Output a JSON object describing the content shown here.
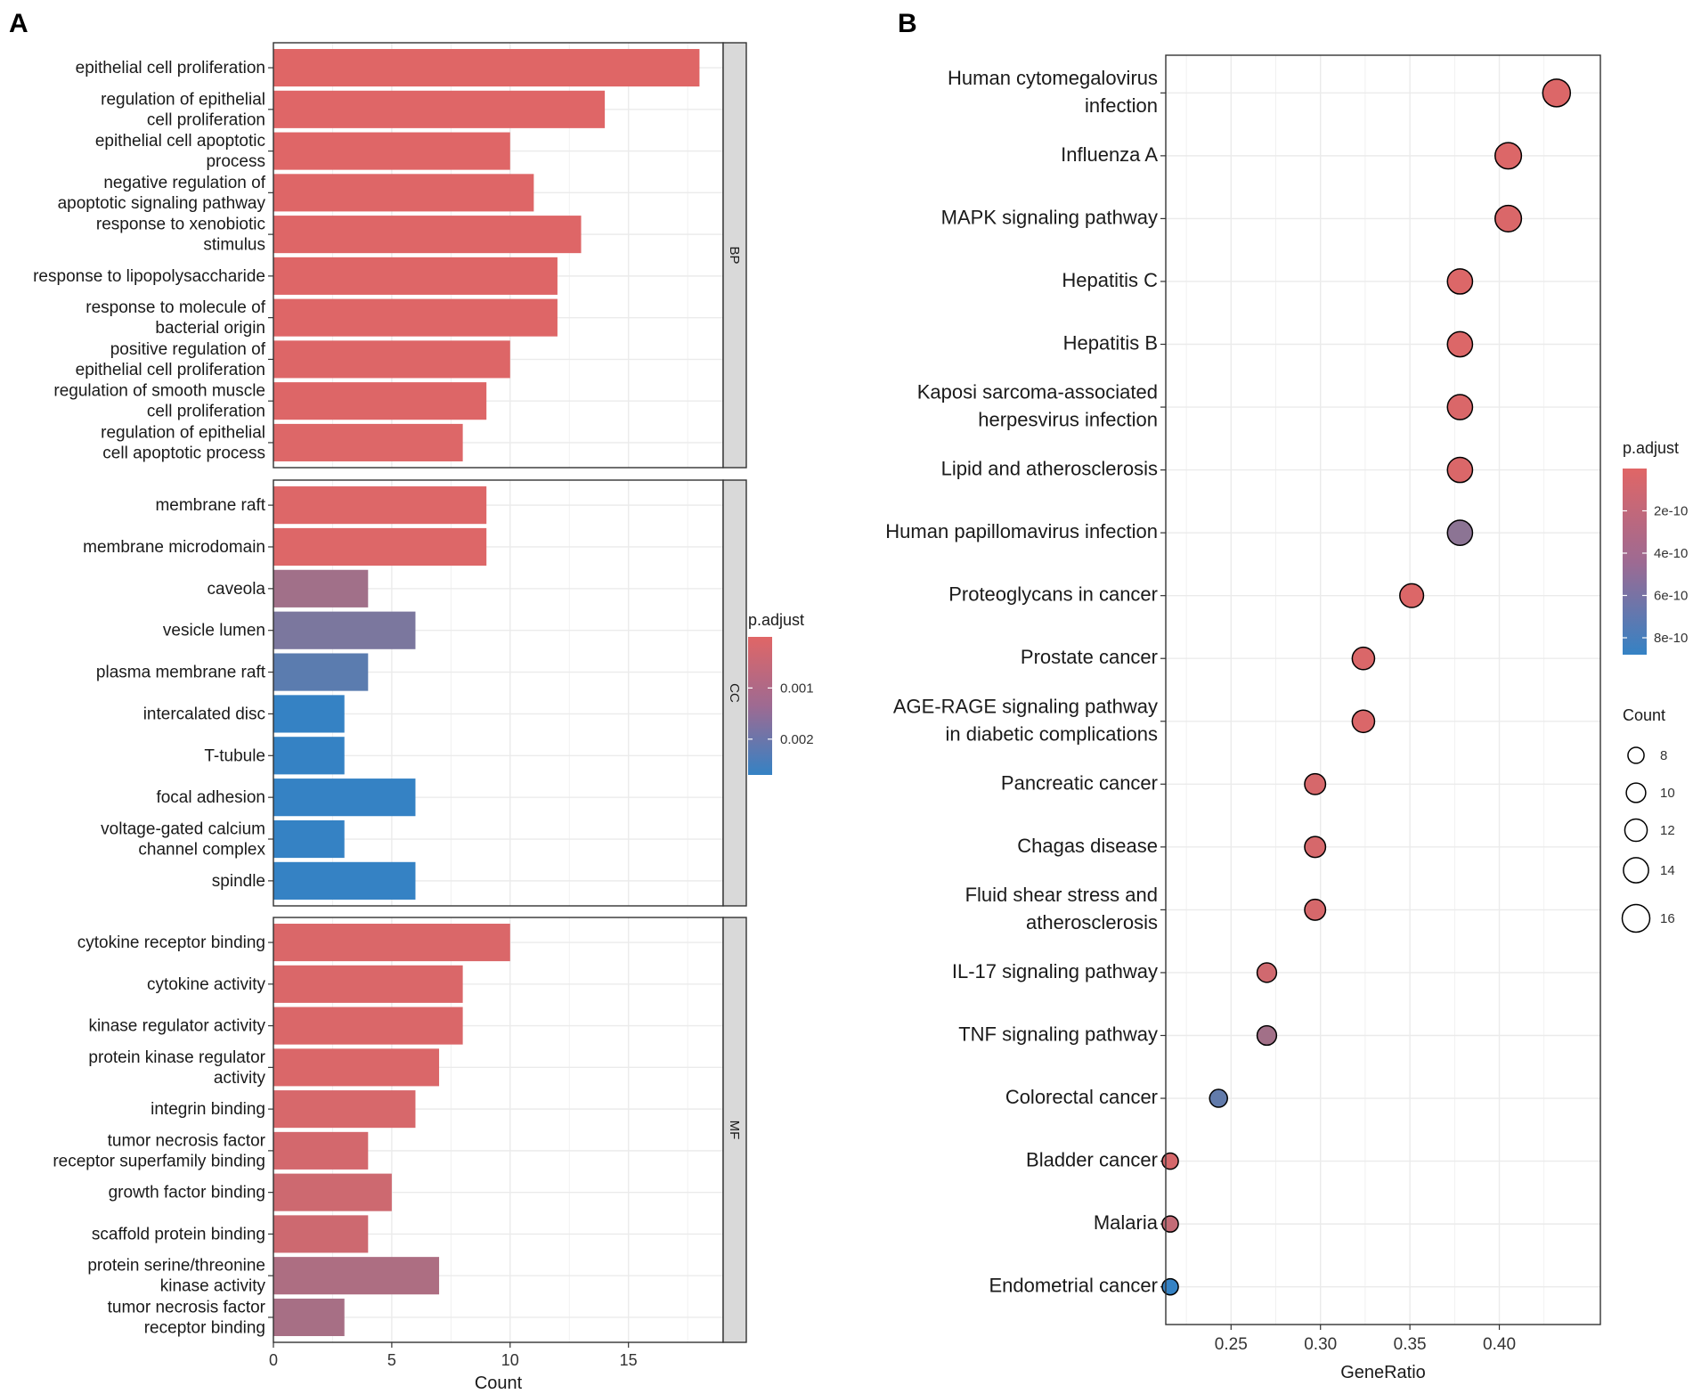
{
  "chart_data": [
    {
      "panel": "A",
      "type": "bar",
      "orientation": "horizontal",
      "xlabel": "Count",
      "xlim": [
        0,
        19
      ],
      "xticks": [
        0,
        5,
        10,
        15
      ],
      "facets": [
        {
          "label": "BP",
          "categories": [
            [
              "epithelial cell proliferation"
            ],
            [
              "regulation of epithelial",
              "cell proliferation"
            ],
            [
              "epithelial cell apoptotic",
              "process"
            ],
            [
              "negative regulation of",
              "apoptotic signaling pathway"
            ],
            [
              "response to xenobiotic",
              "stimulus"
            ],
            [
              "response to lipopolysaccharide"
            ],
            [
              "response to molecule of",
              "bacterial origin"
            ],
            [
              "positive regulation of",
              "epithelial cell proliferation"
            ],
            [
              "regulation of smooth muscle",
              "cell proliferation"
            ],
            [
              "regulation of epithelial",
              "cell apoptotic process"
            ]
          ],
          "values": [
            18,
            14,
            10,
            11,
            13,
            12,
            12,
            10,
            9,
            8
          ],
          "padjust": [
            1e-05,
            2e-05,
            2e-05,
            3e-05,
            3e-05,
            3e-05,
            3e-05,
            4e-05,
            4e-05,
            5e-05
          ]
        },
        {
          "label": "CC",
          "categories": [
            [
              "membrane raft"
            ],
            [
              "membrane microdomain"
            ],
            [
              "caveola"
            ],
            [
              "vesicle lumen"
            ],
            [
              "plasma membrane raft"
            ],
            [
              "intercalated disc"
            ],
            [
              "T-tubule"
            ],
            [
              "focal adhesion"
            ],
            [
              "voltage-gated calcium",
              "channel complex"
            ],
            [
              "spindle"
            ]
          ],
          "values": [
            9,
            9,
            4,
            6,
            4,
            3,
            3,
            6,
            3,
            6
          ],
          "padjust": [
            5e-05,
            5e-05,
            0.001,
            0.0016,
            0.0021,
            0.0027,
            0.0027,
            0.0027,
            0.0027,
            0.0027
          ]
        },
        {
          "label": "MF",
          "categories": [
            [
              "cytokine receptor binding"
            ],
            [
              "cytokine activity"
            ],
            [
              "kinase regulator activity"
            ],
            [
              "protein kinase regulator",
              "activity"
            ],
            [
              "integrin binding"
            ],
            [
              "tumor necrosis factor",
              "receptor superfamily binding"
            ],
            [
              "growth factor binding"
            ],
            [
              "scaffold protein binding"
            ],
            [
              "protein serine/threonine",
              "kinase activity"
            ],
            [
              "tumor necrosis factor",
              "receptor binding"
            ]
          ],
          "values": [
            10,
            8,
            8,
            7,
            6,
            4,
            5,
            4,
            7,
            3
          ],
          "padjust": [
            0.0001,
            0.0001,
            0.0001,
            0.0001,
            0.00015,
            0.0002,
            0.0003,
            0.0003,
            0.0008,
            0.0009
          ]
        }
      ],
      "legend": {
        "title": "p.adjust",
        "ticks": [
          0.001,
          0.002
        ],
        "tick_labels": [
          "0.001",
          "0.002"
        ],
        "range": [
          0.0,
          0.0027
        ],
        "high_color": "#E06666",
        "low_color": "#3582C4",
        "placement": "right"
      }
    },
    {
      "panel": "B",
      "type": "scatter",
      "xlabel": "GeneRatio",
      "xlim": [
        0.2135,
        0.4565
      ],
      "xticks": [
        0.25,
        0.3,
        0.35,
        0.4
      ],
      "xtick_labels": [
        "0.25",
        "0.30",
        "0.35",
        "0.40"
      ],
      "categories": [
        [
          "Human cytomegalovirus",
          "infection"
        ],
        [
          "Influenza A"
        ],
        [
          "MAPK signaling pathway"
        ],
        [
          "Hepatitis C"
        ],
        [
          "Hepatitis B"
        ],
        [
          "Kaposi sarcoma-associated",
          "herpesvirus infection"
        ],
        [
          "Lipid and atherosclerosis"
        ],
        [
          "Human papillomavirus infection"
        ],
        [
          "Proteoglycans in cancer"
        ],
        [
          "Prostate cancer"
        ],
        [
          "AGE-RAGE signaling pathway",
          "in diabetic complications"
        ],
        [
          "Pancreatic cancer"
        ],
        [
          "Chagas disease"
        ],
        [
          "Fluid shear stress and",
          "atherosclerosis"
        ],
        [
          "IL-17 signaling pathway"
        ],
        [
          "TNF signaling pathway"
        ],
        [
          "Colorectal cancer"
        ],
        [
          "Bladder cancer"
        ],
        [
          "Malaria"
        ],
        [
          "Endometrial cancer"
        ]
      ],
      "gene_ratio": [
        0.432,
        0.405,
        0.405,
        0.378,
        0.378,
        0.378,
        0.378,
        0.378,
        0.351,
        0.324,
        0.324,
        0.297,
        0.297,
        0.297,
        0.27,
        0.27,
        0.243,
        0.216,
        0.216,
        0.216
      ],
      "count": [
        16,
        15,
        15,
        14,
        14,
        14,
        14,
        14,
        13,
        12,
        12,
        11,
        11,
        11,
        10,
        10,
        9,
        8,
        8,
        8
      ],
      "padjust": [
        2e-11,
        2e-11,
        3e-11,
        2e-11,
        2e-11,
        3e-11,
        3e-11,
        4.3e-10,
        2e-11,
        3e-11,
        3e-11,
        5e-11,
        5e-11,
        5e-11,
        8e-11,
        3.2e-10,
        6.5e-10,
        5e-11,
        1.5e-10,
        8.8e-10
      ],
      "legend_color": {
        "title": "p.adjust",
        "ticks": [
          2e-10,
          4e-10,
          6e-10,
          8e-10
        ],
        "tick_labels": [
          "2e-10",
          "4e-10",
          "6e-10",
          "8e-10"
        ],
        "range": [
          0.0,
          8.8e-10
        ],
        "high_color": "#E06666",
        "low_color": "#3582C4",
        "placement": "right"
      },
      "legend_size": {
        "title": "Count",
        "values": [
          8,
          10,
          12,
          14,
          16
        ],
        "labels": [
          "8",
          "10",
          "12",
          "14",
          "16"
        ],
        "placement": "right"
      }
    }
  ],
  "panels": {
    "a_letter": "A",
    "b_letter": "B"
  },
  "colors": {
    "grid": "#EBEBEB",
    "strip_bg": "#D9D9D9",
    "frame": "#333333"
  }
}
